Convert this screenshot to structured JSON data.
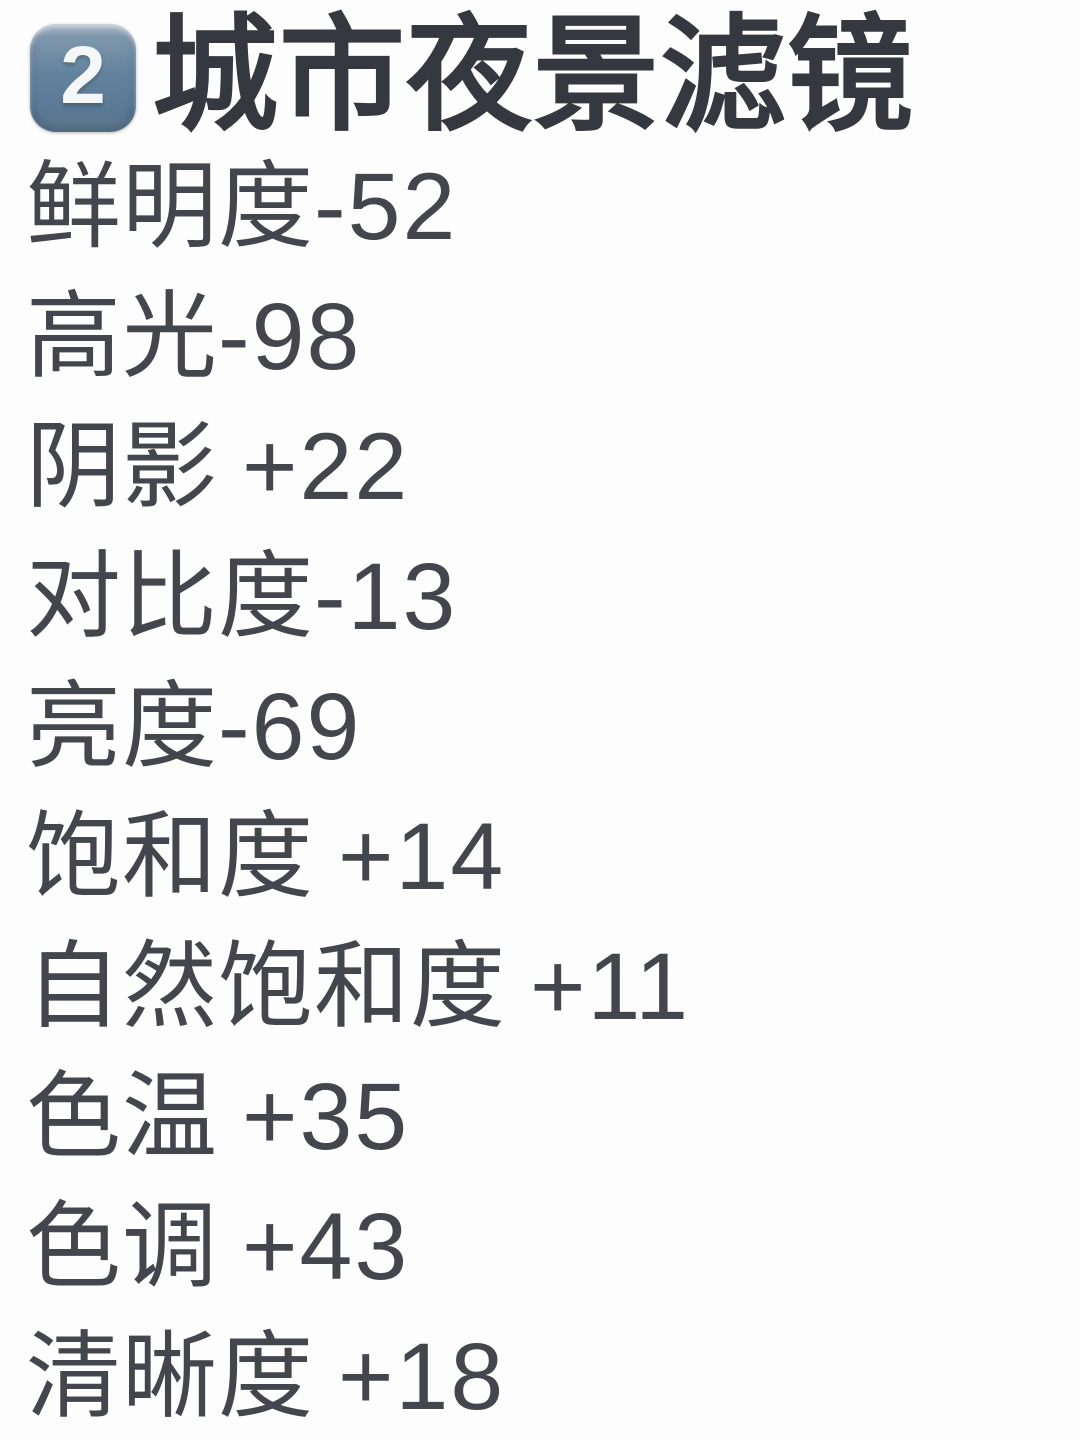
{
  "colors": {
    "background": "#fdfdfd",
    "title_text": "#35383f",
    "body_text": "#43464c",
    "keycap_fill": "#64839e",
    "keycap_digit": "#f4f6f8"
  },
  "header": {
    "keycap_icon": "keycap-2-emoji",
    "keycap_digit": "2",
    "title": "城市夜景滤镜"
  },
  "filters": [
    {
      "label": "鲜明度",
      "value": "-52"
    },
    {
      "label": "高光",
      "value": "-98"
    },
    {
      "label": "阴影",
      "value": "+22"
    },
    {
      "label": "对比度",
      "value": "-13"
    },
    {
      "label": "亮度",
      "value": "-69"
    },
    {
      "label": "饱和度",
      "value": "+14"
    },
    {
      "label": "自然饱和度",
      "value": "+11"
    },
    {
      "label": "色温",
      "value": "+35"
    },
    {
      "label": "色调",
      "value": "+43"
    },
    {
      "label": "清晰度",
      "value": "+18"
    }
  ]
}
